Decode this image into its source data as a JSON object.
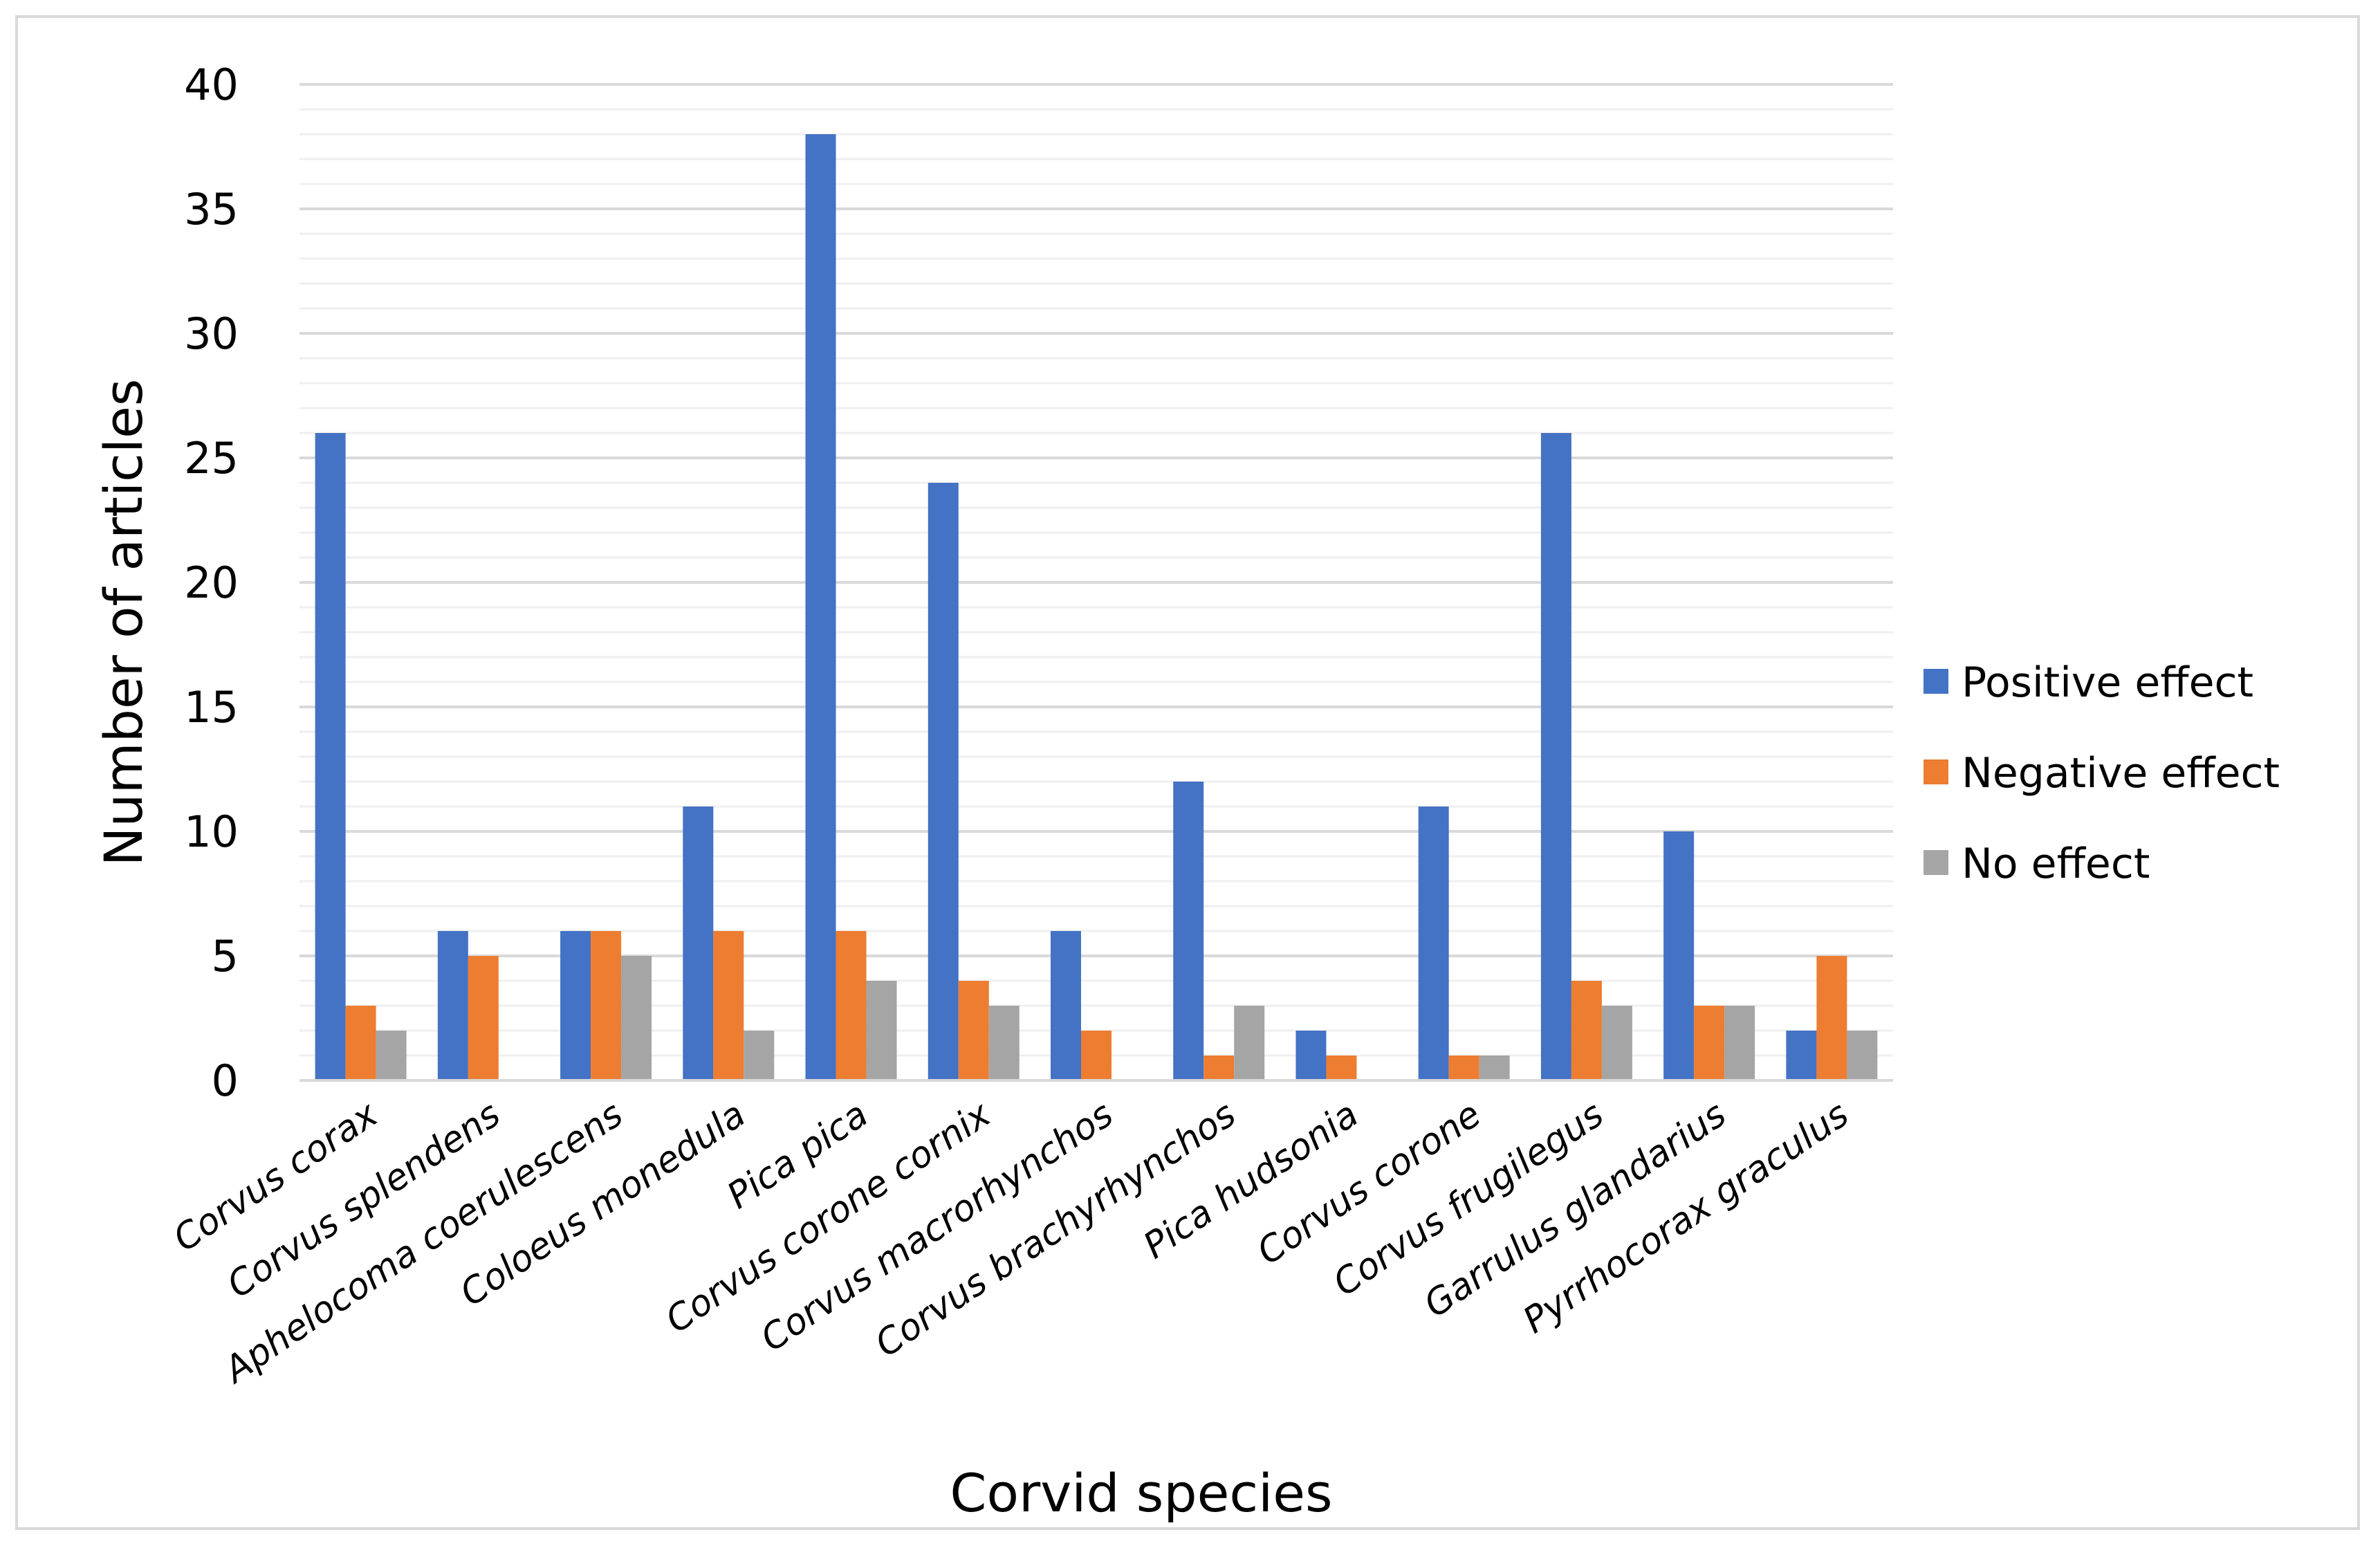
{
  "chart_data": {
    "type": "bar",
    "title": "",
    "xlabel": "Corvid species",
    "ylabel": "Number of articles",
    "ylim": [
      0,
      40
    ],
    "major_ticks": [
      0,
      5,
      10,
      15,
      20,
      25,
      30,
      35,
      40
    ],
    "minor_step": 1,
    "grid": true,
    "legend_position": "right",
    "categories": [
      "Corvus corax",
      "Corvus splendens",
      "Aphelocoma coerulescens",
      "Coloeus monedula",
      "Pica pica",
      "Corvus corone cornix",
      "Corvus macrorhynchos",
      "Corvus brachyrhynchos",
      "Pica hudsonia",
      "Corvus corone",
      "Corvus frugilegus",
      "Garrulus glandarius",
      "Pyrrhocorax graculus"
    ],
    "series": [
      {
        "name": "Positive effect",
        "color": "#4472c4",
        "values": [
          26,
          6,
          6,
          11,
          38,
          24,
          6,
          12,
          2,
          11,
          26,
          10,
          2
        ]
      },
      {
        "name": "Negative effect",
        "color": "#ed7d31",
        "values": [
          3,
          5,
          6,
          6,
          6,
          4,
          2,
          1,
          1,
          1,
          4,
          3,
          5
        ]
      },
      {
        "name": "No effect",
        "color": "#a5a5a5",
        "values": [
          2,
          0,
          5,
          2,
          4,
          3,
          0,
          3,
          0,
          1,
          3,
          3,
          2
        ]
      }
    ]
  }
}
